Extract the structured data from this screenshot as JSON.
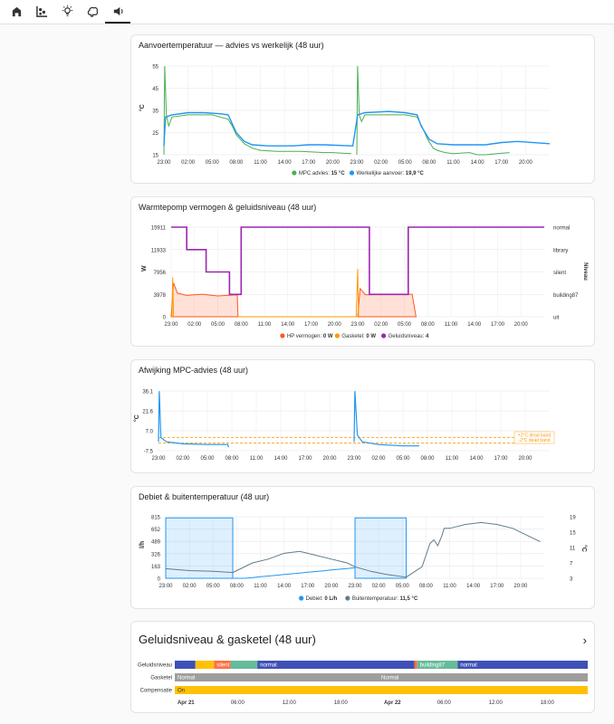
{
  "tabs": [
    {
      "icon": "home-icon"
    },
    {
      "icon": "chart-dots-icon"
    },
    {
      "icon": "lightbulb-icon"
    },
    {
      "icon": "brain-icon"
    },
    {
      "icon": "speaker-icon"
    }
  ],
  "card1": {
    "title": "Aanvoertemperatuur — advies vs werkelijk (48 uur)",
    "ylabel": "°C",
    "yticks": [
      "55",
      "45",
      "35",
      "25",
      "15"
    ],
    "xticks": [
      "23:00",
      "02:00",
      "05:00",
      "08:00",
      "11:00",
      "14:00",
      "17:00",
      "20:00",
      "23:00",
      "02:00",
      "05:00",
      "08:00",
      "11:00",
      "14:00",
      "17:00",
      "20:00"
    ],
    "legend": [
      {
        "name": "MPC advies:",
        "value": "15 °C",
        "color": "#4caf50"
      },
      {
        "name": "Werkelijke aanvoer:",
        "value": "19,9 °C",
        "color": "#2196f3"
      }
    ]
  },
  "card2": {
    "title": "Warmtepomp vermogen & geluidsniveau (48 uur)",
    "ylabel": "W",
    "yticks": [
      "15911",
      "11933",
      "7956",
      "3978",
      "0"
    ],
    "rlabel": "Niveau",
    "rticks": [
      "normal",
      "library",
      "silent",
      "building87",
      "uit"
    ],
    "xticks": [
      "23:00",
      "02:00",
      "05:00",
      "08:00",
      "11:00",
      "14:00",
      "17:00",
      "20:00",
      "23:00",
      "02:00",
      "05:00",
      "08:00",
      "11:00",
      "14:00",
      "17:00",
      "20:00"
    ],
    "legend": [
      {
        "name": "HP vermogen:",
        "value": "0 W",
        "color": "#ff5722"
      },
      {
        "name": "Gasketel:",
        "value": "0 W",
        "color": "#ff9800"
      },
      {
        "name": "Geluidsniveau:",
        "value": "4",
        "color": "#9c27b0"
      }
    ]
  },
  "card3": {
    "title": "Afwijking MPC-advies (48 uur)",
    "ylabel": "°C",
    "yticks": [
      "36.1",
      "21.6",
      "7.0",
      "-7.5"
    ],
    "xticks": [
      "23:00",
      "02:00",
      "05:00",
      "08:00",
      "11:00",
      "14:00",
      "17:00",
      "20:00",
      "23:00",
      "02:00",
      "05:00",
      "08:00",
      "11:00",
      "14:00",
      "17:00",
      "20:00"
    ],
    "band_labels": [
      "+2°C dead band",
      "-2°C dead band"
    ]
  },
  "card4": {
    "title": "Debiet & buitentemperatuur (48 uur)",
    "ylabel": "l/h",
    "yticks": [
      "815",
      "652",
      "489",
      "326",
      "163",
      "0"
    ],
    "rlabel": "°C",
    "rticks": [
      "19",
      "15",
      "11",
      "7",
      "3"
    ],
    "xticks": [
      "23:00",
      "02:00",
      "05:00",
      "08:00",
      "11:00",
      "14:00",
      "17:00",
      "20:00",
      "23:00",
      "02:00",
      "05:00",
      "08:00",
      "11:00",
      "14:00",
      "17:00",
      "20:00"
    ],
    "legend": [
      {
        "name": "Debiet:",
        "value": "0 L/h",
        "color": "#2196f3"
      },
      {
        "name": "Buitentemperatuur:",
        "value": "11,5 °C",
        "color": "#607d8b"
      }
    ]
  },
  "card5": {
    "title": "Geluidsniveau & gasketel (48 uur)",
    "rows": [
      {
        "label": "Geluidsniveau",
        "segments": [
          {
            "from": 0,
            "to": 0.05,
            "color": "#3f51b5",
            "text": ""
          },
          {
            "from": 0.05,
            "to": 0.095,
            "color": "#ffc107",
            "text": ""
          },
          {
            "from": 0.095,
            "to": 0.135,
            "color": "#ff7043",
            "text": "silent"
          },
          {
            "from": 0.135,
            "to": 0.2,
            "color": "#66bb9a",
            "text": ""
          },
          {
            "from": 0.2,
            "to": 0.58,
            "color": "#3f51b5",
            "text": "normal"
          },
          {
            "from": 0.58,
            "to": 0.587,
            "color": "#ff7043",
            "text": ""
          },
          {
            "from": 0.587,
            "to": 0.685,
            "color": "#66bb9a",
            "text": "building87"
          },
          {
            "from": 0.685,
            "to": 1,
            "color": "#3f51b5",
            "text": "normal"
          }
        ]
      },
      {
        "label": "Gasketel",
        "segments": [
          {
            "from": 0,
            "to": 1,
            "color": "#9e9e9e",
            "text": "Normal"
          },
          {
            "from": 0.5,
            "to": 0.5,
            "color": "#9e9e9e",
            "text": "Normal"
          }
        ]
      },
      {
        "label": "Compensatie",
        "segments": [
          {
            "from": 0,
            "to": 1,
            "color": "#ffc107",
            "text": "On"
          }
        ]
      }
    ],
    "xticks": [
      {
        "t": "Apr 21",
        "bold": true
      },
      {
        "t": "06:00"
      },
      {
        "t": "12:00"
      },
      {
        "t": "18:00"
      },
      {
        "t": "Apr 22",
        "bold": true
      },
      {
        "t": "06:00"
      },
      {
        "t": "12:00"
      },
      {
        "t": "18:00"
      }
    ]
  }
}
